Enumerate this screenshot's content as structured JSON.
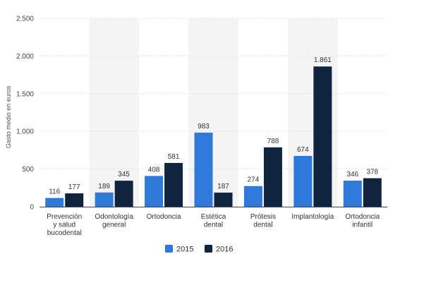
{
  "chart_data": {
    "type": "bar",
    "ylabel": "Gasto medio en euros",
    "xlabel": "",
    "ylim": [
      0,
      2500
    ],
    "yticks": [
      0,
      500,
      1000,
      1500,
      2000,
      2500
    ],
    "ytick_labels": [
      "0",
      "500",
      "1.000",
      "1.500",
      "2.000",
      "2.500"
    ],
    "grid": true,
    "legend_placement": "bottom-center",
    "categories": [
      [
        "Prevención",
        "y salud",
        "bucodental"
      ],
      [
        "Odontología",
        "general"
      ],
      [
        "Ortodoncia"
      ],
      [
        "Estética",
        "dental"
      ],
      [
        "Prótesis",
        "dental"
      ],
      [
        "Implantología"
      ],
      [
        "Ortodoncia",
        "infantil"
      ]
    ],
    "series": [
      {
        "name": "2015",
        "color": "#2f79d8",
        "values": [
          116,
          189,
          408,
          983,
          274,
          674,
          346
        ],
        "labels": [
          "116",
          "189",
          "408",
          "983",
          "274",
          "674",
          "346"
        ]
      },
      {
        "name": "2016",
        "color": "#11243f",
        "values": [
          177,
          345,
          581,
          187,
          788,
          1861,
          378
        ],
        "labels": [
          "177",
          "345",
          "581",
          "187",
          "788",
          "1.861",
          "378"
        ]
      }
    ],
    "colors": {
      "band": "#f4f4f4",
      "grid": "#d9d9d9",
      "axis": "#444444"
    }
  }
}
